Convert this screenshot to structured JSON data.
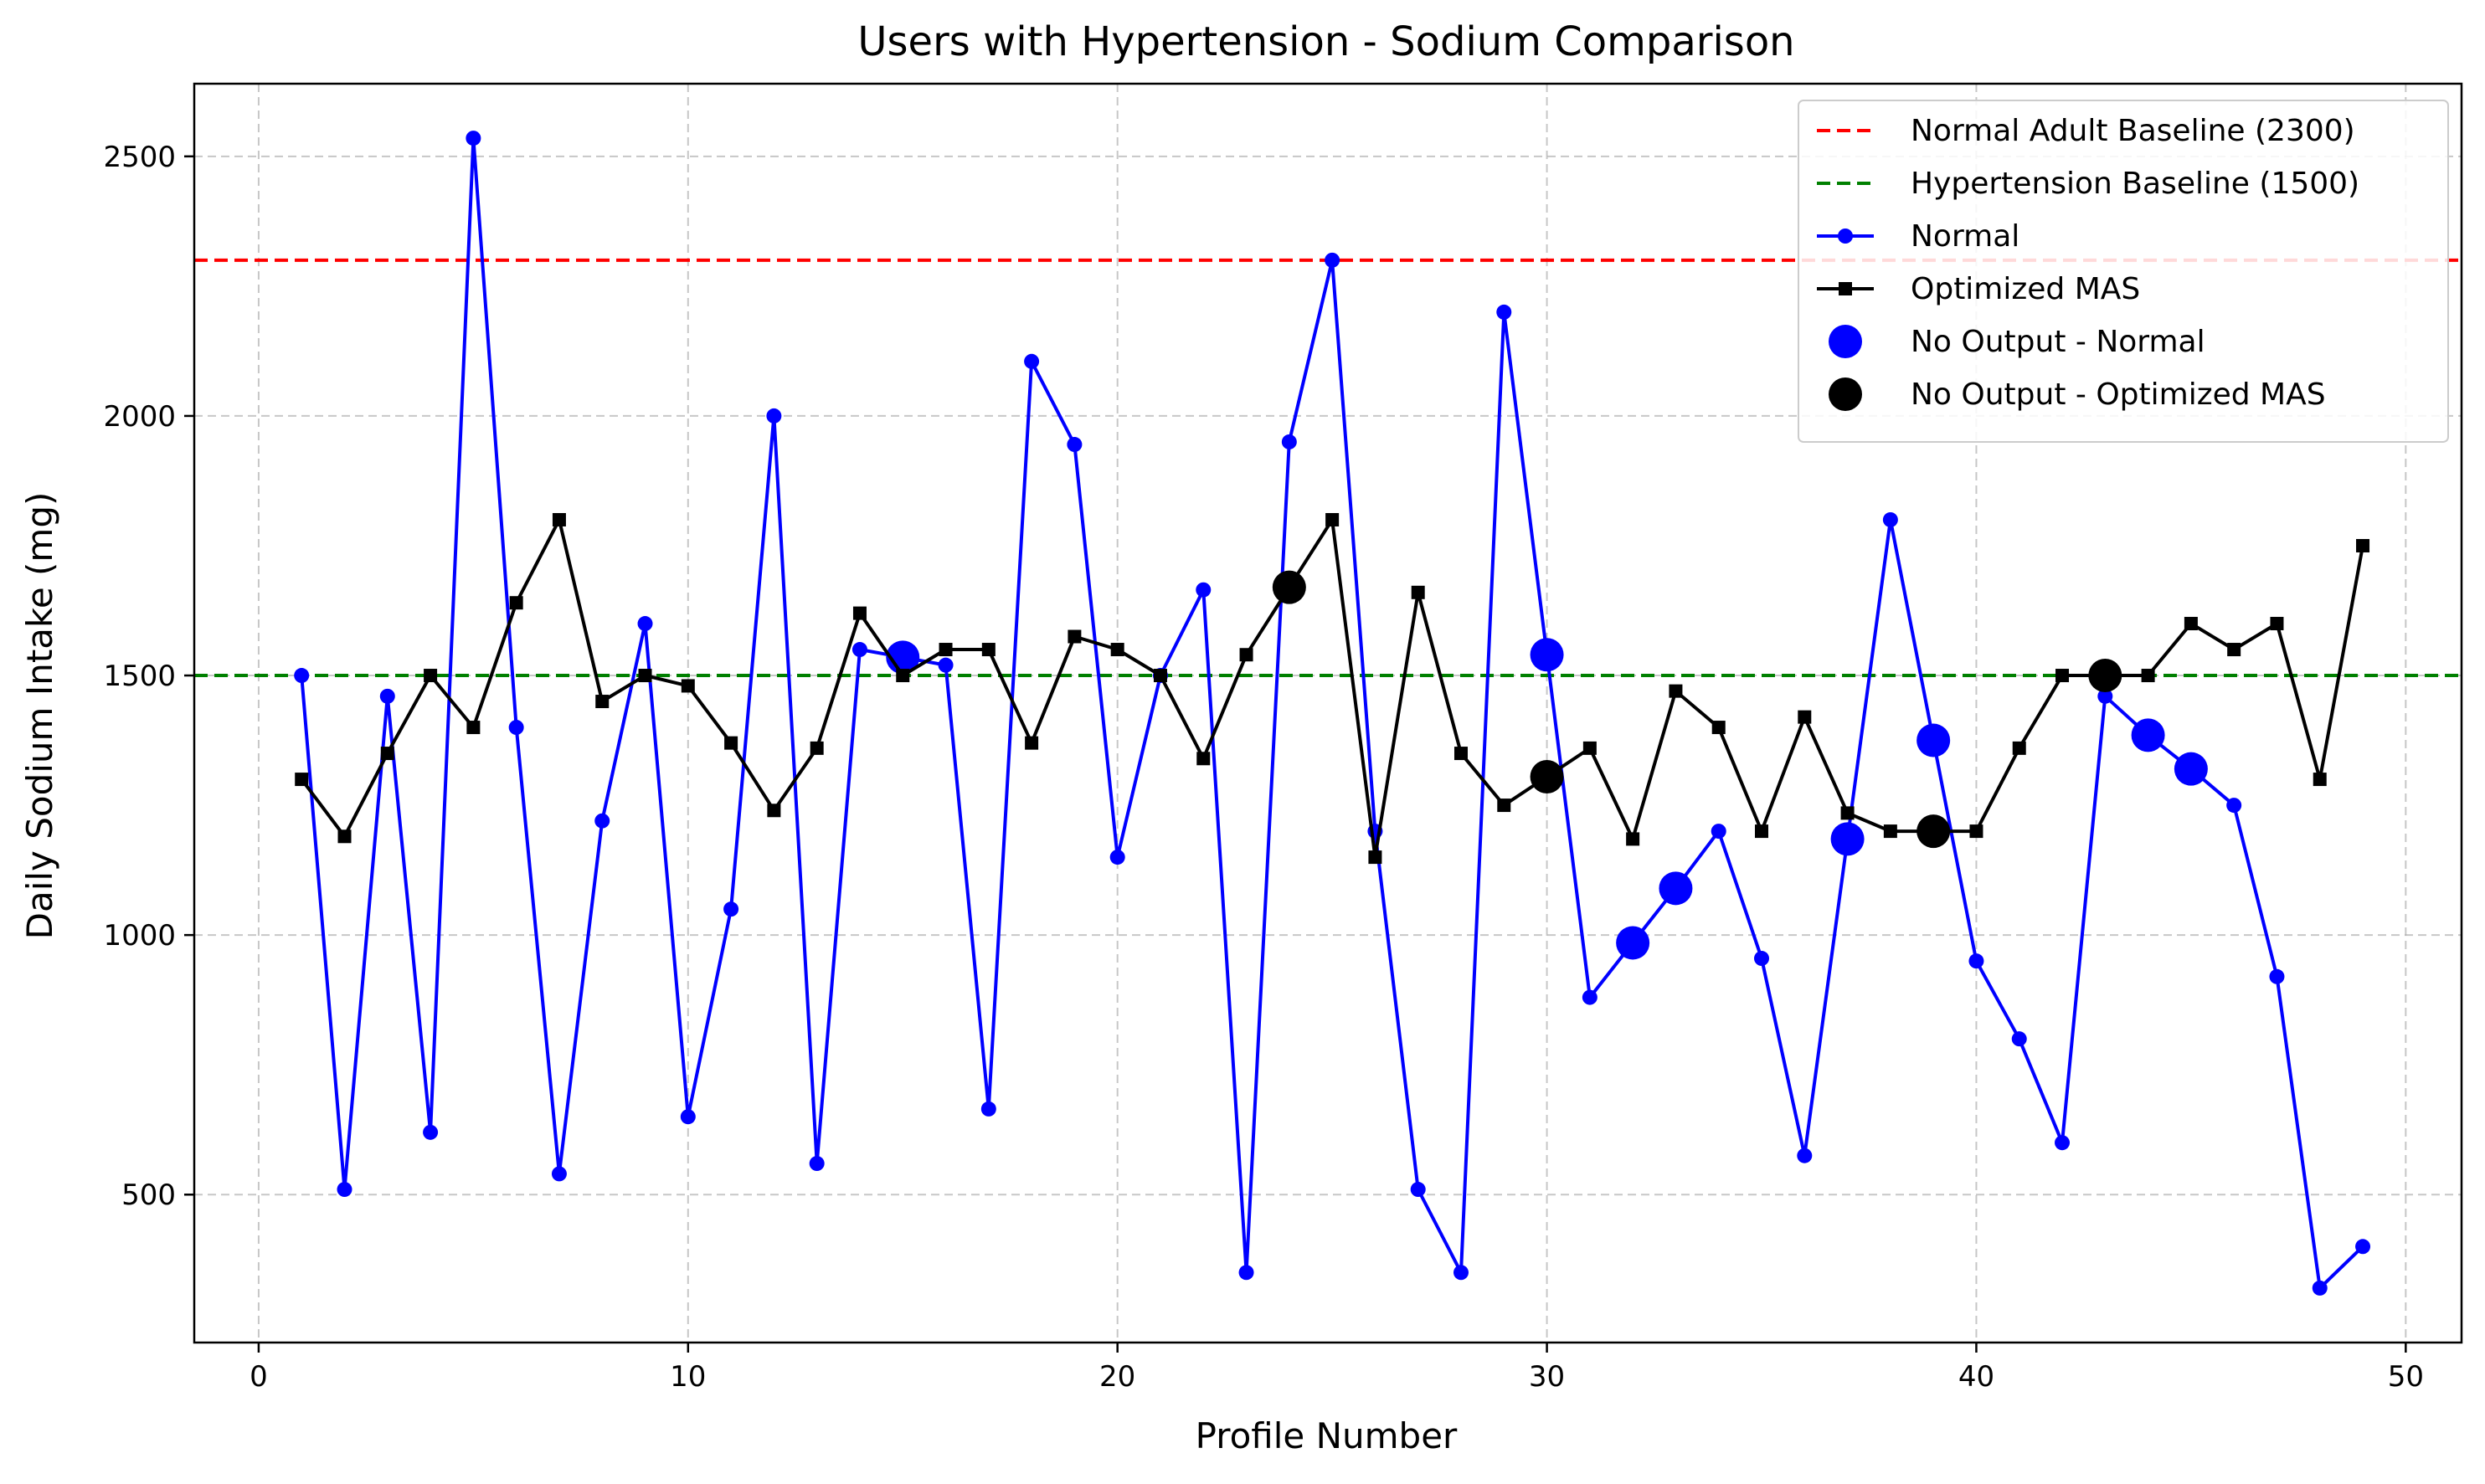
{
  "chart_data": {
    "type": "line",
    "title": "Users with Hypertension - Sodium Comparison",
    "xlabel": "Profile Number",
    "ylabel": "Daily Sodium Intake (mg)",
    "xlim": [
      -1.5,
      51.3
    ],
    "ylim": [
      215,
      2640
    ],
    "xticks": [
      0,
      10,
      20,
      30,
      40,
      50
    ],
    "yticks": [
      500,
      1000,
      1500,
      2000,
      2500
    ],
    "grid": true,
    "legend_position": "top-right",
    "baselines": [
      {
        "name": "Normal Adult Baseline (2300)",
        "value": 2300,
        "color": "#ff0000",
        "style": "dashed"
      },
      {
        "name": "Hypertension Baseline (1500)",
        "value": 1500,
        "color": "#008000",
        "style": "dashed"
      }
    ],
    "x": [
      1,
      2,
      3,
      4,
      5,
      6,
      7,
      8,
      9,
      10,
      11,
      12,
      13,
      14,
      15,
      16,
      17,
      18,
      19,
      20,
      21,
      22,
      23,
      24,
      25,
      26,
      27,
      28,
      29,
      30,
      31,
      32,
      33,
      34,
      35,
      36,
      37,
      38,
      39,
      40,
      41,
      42,
      43,
      44,
      45,
      46,
      47,
      48,
      49
    ],
    "series": [
      {
        "name": "Normal",
        "color": "#0000ff",
        "marker": "circle",
        "values": [
          1500,
          510,
          1460,
          620,
          2535,
          1400,
          540,
          1220,
          1600,
          650,
          1050,
          2000,
          560,
          1550,
          1535,
          1520,
          665,
          2105,
          1945,
          1150,
          1500,
          1665,
          350,
          1950,
          2300,
          1200,
          510,
          350,
          2200,
          1540,
          880,
          985,
          1090,
          1200,
          955,
          575,
          1185,
          1800,
          1375,
          950,
          800,
          600,
          1460,
          1385,
          1320,
          1250,
          920,
          320,
          400
        ],
        "no_output_x": [
          15,
          30,
          32,
          33,
          37,
          39,
          44,
          45
        ]
      },
      {
        "name": "Optimized MAS",
        "color": "#000000",
        "marker": "square",
        "values": [
          1300,
          1190,
          1350,
          1500,
          1400,
          1640,
          1800,
          1450,
          1500,
          1480,
          1370,
          1240,
          1360,
          1620,
          1500,
          1550,
          1550,
          1370,
          1575,
          1550,
          1500,
          1340,
          1540,
          1670,
          1800,
          1150,
          1660,
          1350,
          1250,
          1305,
          1360,
          1185,
          1470,
          1400,
          1200,
          1420,
          1235,
          1200,
          1200,
          1200,
          1360,
          1500,
          1500,
          1500,
          1600,
          1550,
          1600,
          1300,
          1750
        ],
        "no_output_x": [
          24,
          30,
          39,
          43
        ]
      }
    ],
    "legend": [
      {
        "label": "Normal Adult Baseline (2300)",
        "kind": "dashed-line",
        "color": "#ff0000"
      },
      {
        "label": "Hypertension Baseline (1500)",
        "kind": "dashed-line",
        "color": "#008000"
      },
      {
        "label": "Normal",
        "kind": "line-circle",
        "color": "#0000ff"
      },
      {
        "label": "Optimized MAS",
        "kind": "line-square",
        "color": "#000000"
      },
      {
        "label": "No Output - Normal",
        "kind": "big-dot",
        "color": "#0000ff"
      },
      {
        "label": "No Output - Optimized MAS",
        "kind": "big-dot",
        "color": "#000000"
      }
    ]
  }
}
